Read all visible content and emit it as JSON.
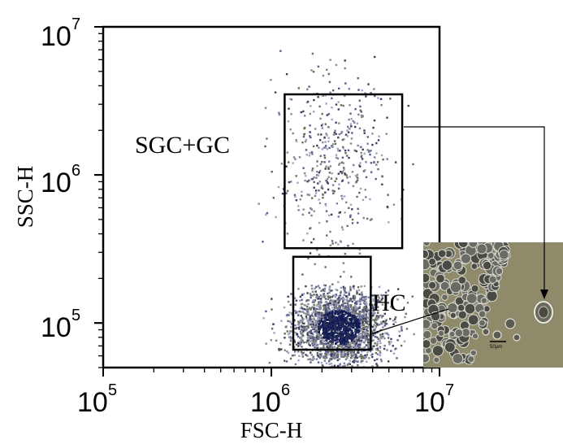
{
  "chart_data": {
    "type": "scatter",
    "title": "",
    "xlabel": "FSC-H",
    "ylabel": "SSC-H",
    "xscale": "log",
    "yscale": "log",
    "xlim": [
      100000,
      10000000
    ],
    "ylim": [
      50000,
      10000000
    ],
    "x_ticks": [
      {
        "value": 100000,
        "base": "10",
        "exp": "5"
      },
      {
        "value": 1000000,
        "base": "10",
        "exp": "6"
      },
      {
        "value": 10000000,
        "base": "10",
        "exp": "7"
      }
    ],
    "y_ticks": [
      {
        "value": 100000,
        "base": "10",
        "exp": "5"
      },
      {
        "value": 1000000,
        "base": "10",
        "exp": "6"
      },
      {
        "value": 10000000,
        "base": "10",
        "exp": "7"
      }
    ],
    "grid": false,
    "gates": [
      {
        "label": "SGC+GC",
        "x": [
          1200000,
          6000000
        ],
        "y": [
          320000,
          3500000
        ]
      },
      {
        "label": "HC",
        "x": [
          1350000,
          3900000
        ],
        "y": [
          66000,
          280000
        ]
      }
    ],
    "populations": [
      {
        "x_center": 2500000,
        "y_center": 95000,
        "x_spread_decades": 0.14,
        "y_spread_decades": 0.13,
        "density": "high"
      },
      {
        "x_center": 2300000,
        "y_center": 1200000,
        "x_spread_decades": 0.16,
        "y_spread_decades": 0.33,
        "density": "low"
      }
    ],
    "inset": {
      "description": "micrograph",
      "scale_label": "50µm"
    },
    "colors": {
      "events": "#5a5f88",
      "dense_core": "#101a55",
      "axis": "#000000",
      "inset_bg": "#8e8a6a"
    }
  }
}
